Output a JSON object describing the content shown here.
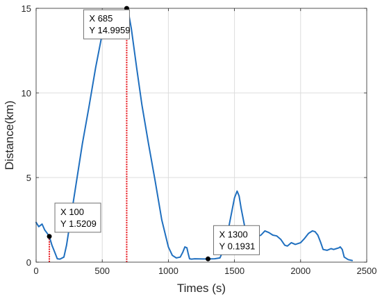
{
  "chart_data": {
    "type": "line",
    "title": "",
    "xlabel": "Times (s)",
    "ylabel": "Distance(km)",
    "xlim": [
      0,
      2500
    ],
    "ylim": [
      0,
      15
    ],
    "xticks": [
      0,
      500,
      1000,
      1500,
      2000,
      2500
    ],
    "yticks": [
      0,
      5,
      10,
      15
    ],
    "xtick_labels": [
      "0",
      "500",
      "1000",
      "1500",
      "2000",
      "2500"
    ],
    "ytick_labels": [
      "0",
      "5",
      "10",
      "15"
    ],
    "grid": true,
    "colors": {
      "line": "#1f6fbf",
      "guide": "#e8151b",
      "marker": "#000000",
      "grid": "#dcdcdc",
      "axis": "#262626"
    },
    "series": [
      {
        "x": [
          0,
          20,
          45,
          65,
          80,
          100,
          120,
          140,
          160,
          180,
          210,
          230,
          260,
          300,
          350,
          400,
          450,
          500,
          550,
          600,
          640,
          660,
          675,
          685,
          695,
          720,
          760,
          800,
          850,
          900,
          950,
          1000,
          1030,
          1060,
          1090,
          1110,
          1125,
          1140,
          1150,
          1160,
          1175,
          1200,
          1260,
          1300,
          1350,
          1390,
          1420,
          1450,
          1480,
          1500,
          1520,
          1535,
          1550,
          1570,
          1590,
          1610,
          1630,
          1650,
          1670,
          1700,
          1730,
          1760,
          1790,
          1820,
          1850,
          1880,
          1900,
          1930,
          1960,
          2000,
          2030,
          2060,
          2090,
          2110,
          2130,
          2150,
          2170,
          2200,
          2230,
          2250,
          2270,
          2290,
          2300,
          2315,
          2330,
          2360,
          2390
        ],
        "y": [
          2.35,
          2.1,
          2.25,
          1.9,
          1.75,
          1.52,
          1.0,
          0.6,
          0.2,
          0.18,
          0.3,
          1.0,
          2.5,
          4.5,
          7.0,
          9.2,
          11.5,
          13.5,
          14.3,
          14.4,
          14.5,
          14.7,
          14.85,
          14.996,
          14.9,
          13.8,
          11.5,
          9.3,
          7.0,
          4.8,
          2.5,
          0.9,
          0.4,
          0.25,
          0.3,
          0.6,
          0.9,
          0.85,
          0.5,
          0.2,
          0.18,
          0.2,
          0.19,
          0.19,
          0.2,
          0.25,
          0.8,
          1.8,
          3.0,
          3.8,
          4.2,
          3.9,
          3.2,
          2.4,
          1.6,
          1.2,
          1.3,
          1.7,
          1.5,
          1.6,
          1.85,
          1.75,
          1.6,
          1.55,
          1.35,
          1.0,
          0.95,
          1.15,
          1.05,
          1.15,
          1.4,
          1.7,
          1.85,
          1.8,
          1.6,
          1.2,
          0.75,
          0.7,
          0.8,
          0.75,
          0.8,
          0.85,
          0.9,
          0.75,
          0.3,
          0.15,
          0.1
        ]
      }
    ],
    "datatips": [
      {
        "x": 100,
        "y": 1.5209,
        "x_text": "X 100",
        "y_text": "Y 1.5209"
      },
      {
        "x": 685,
        "y": 14.9959,
        "x_text": "X 685",
        "y_text": "Y 14.9959"
      },
      {
        "x": 1300,
        "y": 0.1931,
        "x_text": "X 1300",
        "y_text": "Y 0.1931"
      }
    ]
  }
}
